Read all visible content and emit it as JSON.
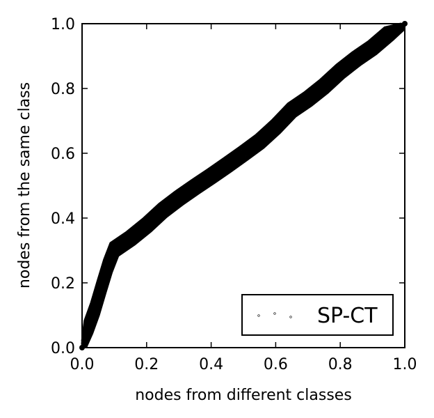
{
  "chart_data": {
    "type": "scatter",
    "title": "",
    "xlabel": "nodes from different classes",
    "ylabel": "nodes from the same class",
    "xlim": [
      0.0,
      1.0
    ],
    "ylim": [
      0.0,
      1.0
    ],
    "xticks": [
      "0.0",
      "0.2",
      "0.4",
      "0.6",
      "0.8",
      "1.0"
    ],
    "yticks": [
      "0.0",
      "0.2",
      "0.4",
      "0.6",
      "0.8",
      "1.0"
    ],
    "grid": false,
    "legend": {
      "position": "lower-right",
      "entries": [
        "SP-CT"
      ]
    },
    "series": [
      {
        "name": "SP-CT",
        "color": "#000000",
        "marker": "small circle, dense curve band",
        "x": [
          0.0,
          0.02,
          0.04,
          0.06,
          0.08,
          0.1,
          0.15,
          0.2,
          0.25,
          0.3,
          0.35,
          0.4,
          0.45,
          0.5,
          0.55,
          0.6,
          0.65,
          0.7,
          0.75,
          0.8,
          0.85,
          0.9,
          0.95,
          1.0
        ],
        "y": [
          0.0,
          0.06,
          0.12,
          0.19,
          0.25,
          0.3,
          0.34,
          0.38,
          0.42,
          0.46,
          0.5,
          0.53,
          0.56,
          0.6,
          0.64,
          0.68,
          0.73,
          0.77,
          0.81,
          0.85,
          0.89,
          0.93,
          0.97,
          1.0
        ]
      }
    ]
  }
}
